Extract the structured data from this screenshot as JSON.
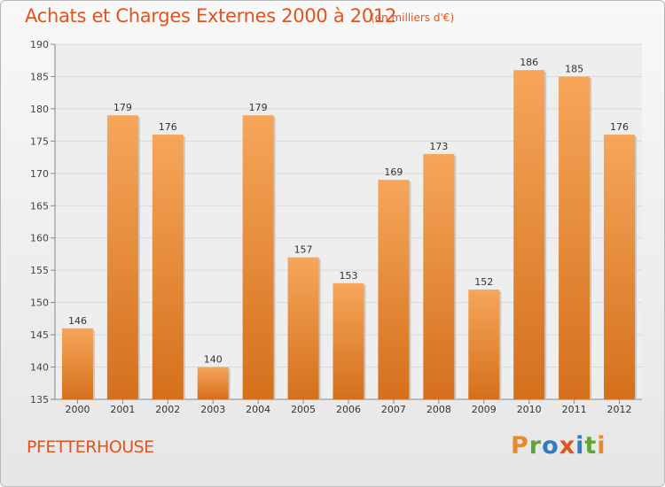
{
  "header": {
    "title": "Achats et Charges Externes 2000 à 2012",
    "subtitle": "(en milliers d'€)"
  },
  "footer": {
    "place": "PFETTERHOUSE",
    "logo_text": "Proxiti"
  },
  "colors": {
    "accent": "#e0541e",
    "bar_top": "#f6a65a",
    "bar_bottom": "#d4701c",
    "logo_letters": [
      "#e8892b",
      "#5fa33a",
      "#2e7fc2",
      "#e0541e",
      "#2e7fc2",
      "#5fa33a",
      "#e8892b"
    ]
  },
  "chart_data": {
    "type": "bar",
    "categories": [
      "2000",
      "2001",
      "2002",
      "2003",
      "2004",
      "2005",
      "2006",
      "2007",
      "2008",
      "2009",
      "2010",
      "2011",
      "2012"
    ],
    "values": [
      146,
      179,
      176,
      140,
      179,
      157,
      153,
      169,
      173,
      152,
      186,
      185,
      176
    ],
    "ylim": [
      135,
      190
    ],
    "yticks": [
      135,
      140,
      145,
      150,
      155,
      160,
      165,
      170,
      175,
      180,
      185,
      190
    ],
    "grid": true
  }
}
